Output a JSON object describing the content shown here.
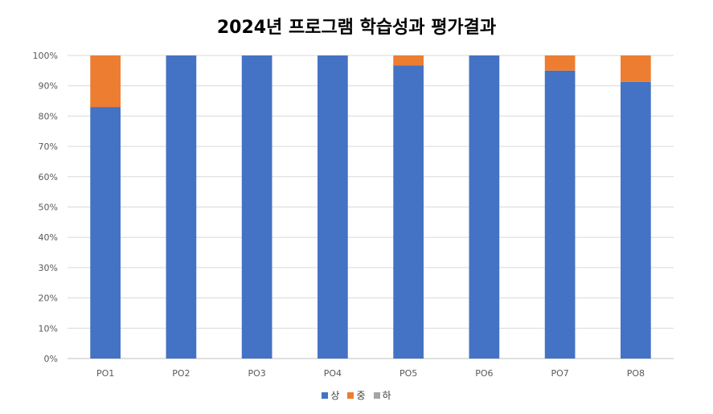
{
  "chart_data": {
    "type": "bar",
    "stacked": true,
    "percent": true,
    "title": "2024년 프로그램 학습성과 평가결과",
    "xlabel": "",
    "ylabel": "",
    "ylim": [
      0,
      100
    ],
    "yticks": [
      "0%",
      "10%",
      "20%",
      "30%",
      "40%",
      "50%",
      "60%",
      "70%",
      "80%",
      "90%",
      "100%"
    ],
    "grid": true,
    "legend_position": "bottom",
    "categories": [
      "PO1",
      "PO2",
      "PO3",
      "PO4",
      "PO5",
      "PO6",
      "PO7",
      "PO8"
    ],
    "series": [
      {
        "name": "상",
        "color": "#4472C4",
        "values": [
          83,
          100,
          100,
          100,
          96.7,
          100,
          95,
          91.3
        ]
      },
      {
        "name": "중",
        "color": "#ED7D31",
        "values": [
          17,
          0,
          0,
          0,
          3.3,
          0,
          5,
          8.7
        ]
      },
      {
        "name": "하",
        "color": "#A5A5A5",
        "values": [
          0,
          0,
          0,
          0,
          0,
          0,
          0,
          0
        ]
      }
    ]
  }
}
